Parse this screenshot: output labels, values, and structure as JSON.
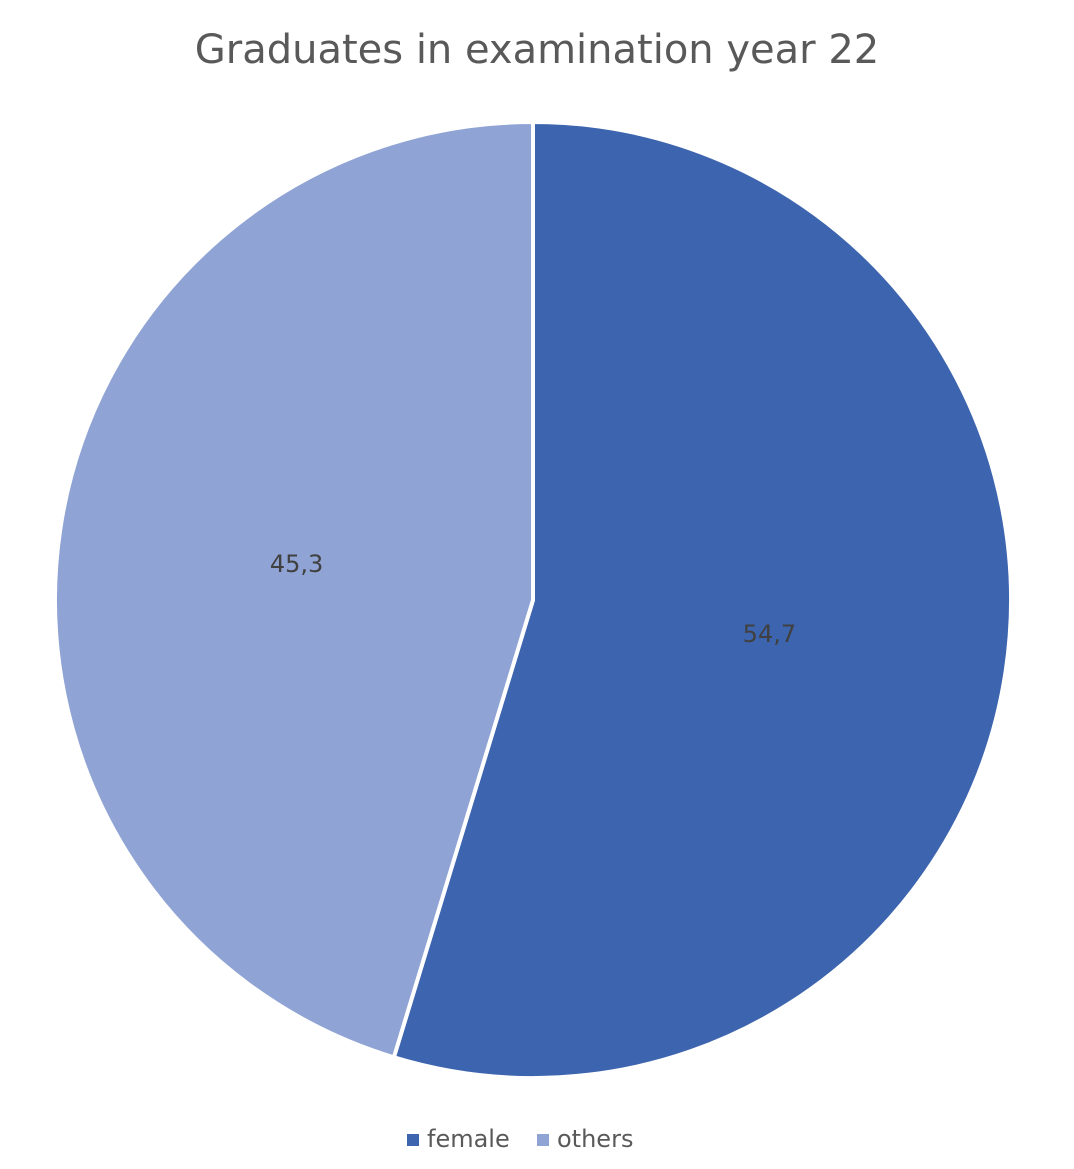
{
  "chart_data": {
    "type": "pie",
    "title": "Graduates in examination year 22",
    "categories": [
      "female",
      "others"
    ],
    "values": [
      54.7,
      45.3
    ],
    "value_labels": [
      "54,7",
      "45,3"
    ],
    "colors": [
      "#3d64ae",
      "#8fa3d4"
    ],
    "legend": "bottom"
  }
}
